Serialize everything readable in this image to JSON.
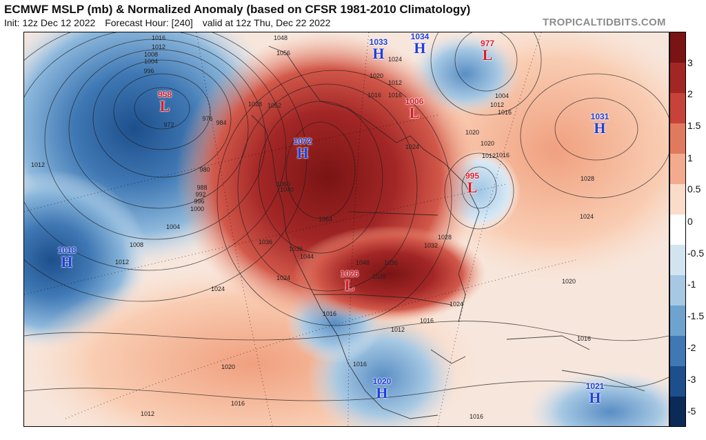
{
  "header": {
    "title": "ECMWF MSLP (mb) & Normalized Anomaly (based on CFSR 1981-2010 Climatology)",
    "init": "Init: 12z Dec 12 2022",
    "forecast_hour": "Forecast Hour: [240]",
    "valid": "valid at 12z Thu, Dec 22 2022",
    "brand": "TROPICALTIDBITS.COM"
  },
  "colorbar": {
    "labels": [
      "3",
      "2",
      "1.5",
      "1",
      "0.5",
      "0",
      "-0.5",
      "-1",
      "-1.5",
      "-2",
      "-3",
      "-5"
    ],
    "colors": [
      "#7a1414",
      "#a32626",
      "#c7423a",
      "#e07a5f",
      "#f2ab8f",
      "#fbdcc8",
      "#ffffff",
      "#d3e4f1",
      "#a6c8e3",
      "#6fa3cf",
      "#3f78b4",
      "#1d4f8c",
      "#0b2a58"
    ]
  },
  "pressure_systems": [
    {
      "type": "H",
      "value": "1033"
    },
    {
      "type": "H",
      "value": "1034"
    },
    {
      "type": "L",
      "value": "977"
    },
    {
      "type": "L",
      "value": "958"
    },
    {
      "type": "L",
      "value": "1006"
    },
    {
      "type": "H",
      "value": "1031"
    },
    {
      "type": "H",
      "value": "1072"
    },
    {
      "type": "L",
      "value": "995"
    },
    {
      "type": "H",
      "value": "1018"
    },
    {
      "type": "L",
      "value": "1026"
    },
    {
      "type": "H",
      "value": "1020"
    },
    {
      "type": "H",
      "value": "1021"
    }
  ],
  "isobar_labels": [
    "1016",
    "1012",
    "1008",
    "1004",
    "996",
    "972",
    "976",
    "984",
    "980",
    "988",
    "992",
    "996",
    "1000",
    "1004",
    "1008",
    "1012",
    "1012",
    "1024",
    "1048",
    "1056",
    "1052",
    "1028",
    "1024",
    "1020",
    "1016",
    "1004",
    "1012",
    "1016",
    "1020",
    "1028",
    "1024",
    "1020",
    "1036",
    "1044",
    "1064",
    "1036",
    "1048",
    "1036",
    "1028",
    "1032",
    "1028",
    "1024",
    "1016",
    "1012",
    "1016",
    "1016",
    "1020",
    "1016",
    "1012",
    "1016",
    "1024",
    "1016",
    "1060",
    "1040",
    "1024",
    "1012",
    "1016",
    "1020",
    "1016",
    "1012"
  ]
}
